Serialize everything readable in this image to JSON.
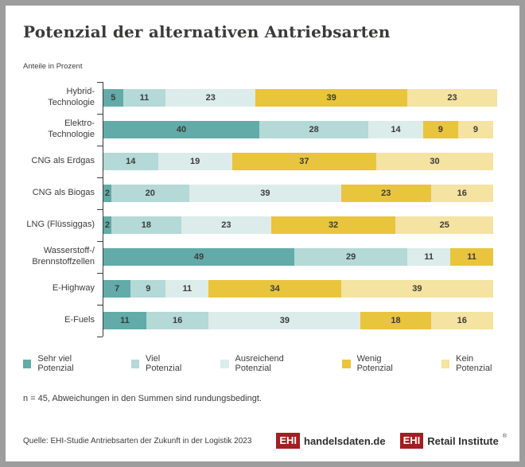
{
  "chart_data": {
    "type": "bar",
    "orientation": "horizontal",
    "stacked": true,
    "title": "Potenzial der alternativen Antriebsarten",
    "axis_label": "Anteile in Prozent",
    "xlim": [
      0,
      100
    ],
    "grid": false,
    "legend_position": "bottom",
    "value_unit": "percent",
    "categories": [
      "Hybrid-Technologie",
      "Elektro-Technologie",
      "CNG als Erdgas",
      "CNG als Biogas",
      "LNG (Flüssiggas)",
      "Wasserstoff-/\nBrennstoffzellen",
      "E-Highway",
      "E-Fuels"
    ],
    "series": [
      {
        "name": "Sehr viel Potenzial",
        "color": "#62aba8",
        "values": [
          5,
          40,
          0,
          2,
          2,
          49,
          7,
          11
        ]
      },
      {
        "name": "Viel Potenzial",
        "color": "#b4d9d7",
        "values": [
          11,
          28,
          14,
          20,
          18,
          29,
          9,
          16
        ]
      },
      {
        "name": "Ausreichend Potenzial",
        "color": "#dbeceb",
        "values": [
          23,
          14,
          19,
          39,
          23,
          11,
          11,
          39
        ]
      },
      {
        "name": "Wenig Potenzial",
        "color": "#e9c43d",
        "values": [
          39,
          9,
          37,
          23,
          32,
          11,
          34,
          18
        ]
      },
      {
        "name": "Kein Potenzial",
        "color": "#f4e3a1",
        "values": [
          23,
          9,
          30,
          16,
          25,
          0,
          39,
          16
        ]
      }
    ]
  },
  "notes": {
    "sample": "n = 45, Abweichungen in den Summen sind rundungsbedingt."
  },
  "footer": {
    "source": "Quelle: EHI-Studie Antriebsarten der Zukunft in der Logistik 2023",
    "brand_red": "#a41e21",
    "logos": [
      {
        "badge": "EHI",
        "label": "handelsdaten.de",
        "registered": ""
      },
      {
        "badge": "EHI",
        "label": "Retail Institute",
        "registered": "®"
      }
    ]
  }
}
